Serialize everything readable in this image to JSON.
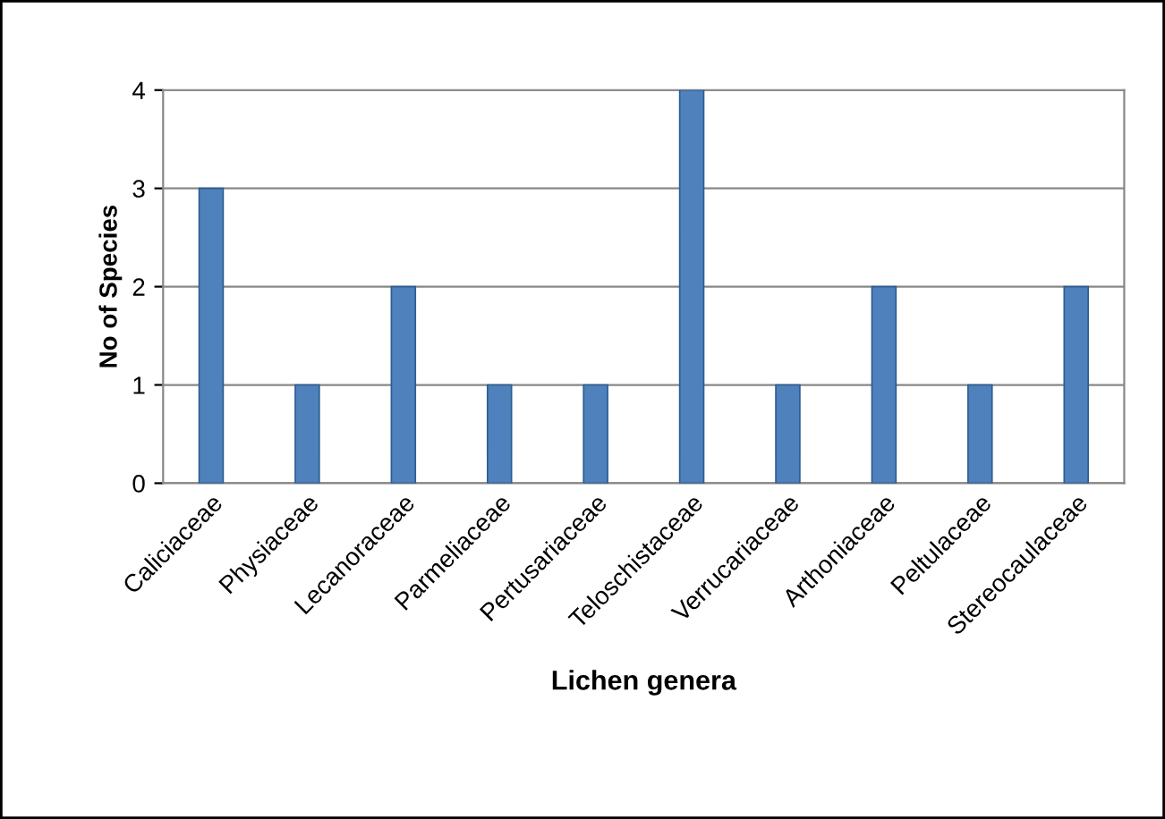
{
  "chart_data": {
    "type": "bar",
    "xlabel": "Lichen genera",
    "ylabel": "No of Species",
    "categories": [
      "Caliciaceae",
      "Physiaceae",
      "Lecanoraceae",
      "Parmeliaceae",
      "Pertusariaceae",
      "Teloschistaceae",
      "Verrucariaceae",
      "Arthoniaceae",
      "Peltulaceae",
      "Stereocaulaceae"
    ],
    "values": [
      3,
      1,
      2,
      1,
      1,
      4,
      1,
      2,
      1,
      2
    ],
    "color": "#4f81bd",
    "ylim": [
      0,
      4
    ],
    "yticks": [
      0,
      1,
      2,
      3,
      4
    ],
    "grid": "y"
  }
}
